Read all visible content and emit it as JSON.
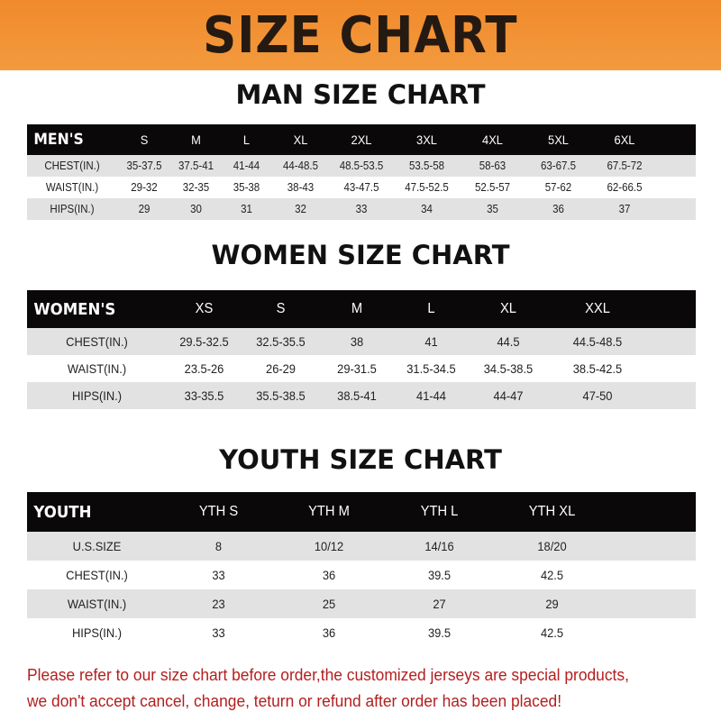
{
  "banner": "SIZE CHART",
  "men": {
    "title": "MAN SIZE CHART",
    "header": [
      "MEN'S",
      "S",
      "M",
      "L",
      "XL",
      "2XL",
      "3XL",
      "4XL",
      "5XL",
      "6XL"
    ],
    "rows": [
      [
        "CHEST(IN.)",
        "35-37.5",
        "37.5-41",
        "41-44",
        "44-48.5",
        "48.5-53.5",
        "53.5-58",
        "58-63",
        "63-67.5",
        "67.5-72"
      ],
      [
        "WAIST(IN.)",
        "29-32",
        "32-35",
        "35-38",
        "38-43",
        "43-47.5",
        "47.5-52.5",
        "52.5-57",
        "57-62",
        "62-66.5"
      ],
      [
        "HIPS(IN.)",
        "29",
        "30",
        "31",
        "32",
        "33",
        "34",
        "35",
        "36",
        "37"
      ]
    ]
  },
  "women": {
    "title": "WOMEN SIZE CHART",
    "header": [
      "WOMEN'S",
      "XS",
      "S",
      "M",
      "L",
      "XL",
      "XXL"
    ],
    "rows": [
      [
        "CHEST(IN.)",
        "29.5-32.5",
        "32.5-35.5",
        "38",
        "41",
        "44.5",
        "44.5-48.5"
      ],
      [
        "WAIST(IN.)",
        "23.5-26",
        "26-29",
        "29-31.5",
        "31.5-34.5",
        "34.5-38.5",
        "38.5-42.5"
      ],
      [
        "HIPS(IN.)",
        "33-35.5",
        "35.5-38.5",
        "38.5-41",
        "41-44",
        "44-47",
        "47-50"
      ]
    ]
  },
  "youth": {
    "title": "YOUTH SIZE CHART",
    "header": [
      "YOUTH",
      "YTH S",
      "YTH M",
      "YTH L",
      "YTH XL"
    ],
    "rows": [
      [
        "U.S.SIZE",
        "8",
        "10/12",
        "14/16",
        "18/20"
      ],
      [
        "CHEST(IN.)",
        "33",
        "36",
        "39.5",
        "42.5"
      ],
      [
        "WAIST(IN.)",
        "23",
        "25",
        "27",
        "29"
      ],
      [
        "HIPS(IN.)",
        "33",
        "36",
        "39.5",
        "42.5"
      ]
    ]
  },
  "note": [
    "Please refer to our size chart before order,the customized jerseys are special products,",
    "we don't accept cancel, change, teturn or refund after order has been placed!"
  ],
  "colors": {
    "banner": "#f08a2c",
    "header_row": "#0a0808",
    "stripe": "#e2e2e2",
    "note": "#b41e1e"
  }
}
